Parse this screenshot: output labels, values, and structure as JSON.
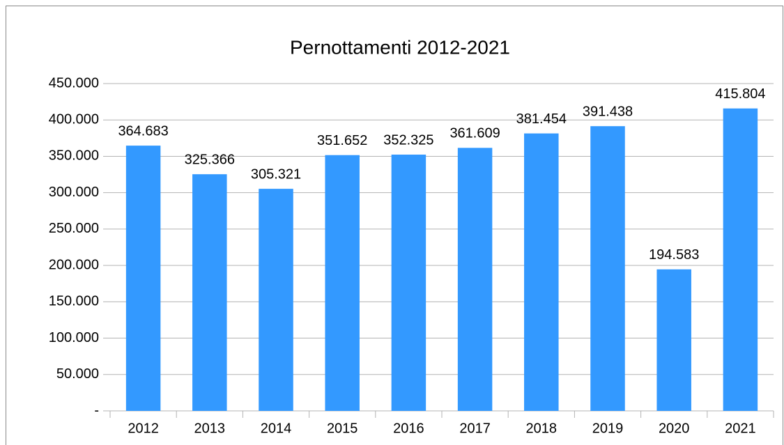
{
  "chart_data": {
    "type": "bar",
    "title": "Pernottamenti 2012-2021",
    "categories": [
      "2012",
      "2013",
      "2014",
      "2015",
      "2016",
      "2017",
      "2018",
      "2019",
      "2020",
      "2021"
    ],
    "values": [
      364683,
      325366,
      305321,
      351652,
      352325,
      361609,
      381454,
      391438,
      194583,
      415804
    ],
    "value_labels": [
      "364.683",
      "325.366",
      "305.321",
      "351.652",
      "352.325",
      "361.609",
      "381.454",
      "391.438",
      "194.583",
      "415.804"
    ],
    "color": "#3399ff",
    "ylim": [
      0,
      450000
    ],
    "yticks": [
      {
        "value": 0,
        "label": "-"
      },
      {
        "value": 50000,
        "label": "50.000"
      },
      {
        "value": 100000,
        "label": "100.000"
      },
      {
        "value": 150000,
        "label": "150.000"
      },
      {
        "value": 200000,
        "label": "200.000"
      },
      {
        "value": 250000,
        "label": "250.000"
      },
      {
        "value": 300000,
        "label": "300.000"
      },
      {
        "value": 350000,
        "label": "350.000"
      },
      {
        "value": 400000,
        "label": "400.000"
      },
      {
        "value": 450000,
        "label": "450.000"
      }
    ],
    "grid": true
  }
}
